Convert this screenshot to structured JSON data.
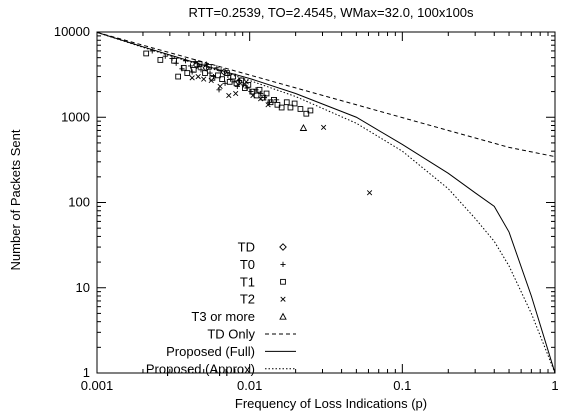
{
  "chart_data": {
    "type": "scatter",
    "title": "RTT=0.2539, TO=2.4545, WMax=32.0, 100x100s",
    "xlabel": "Frequency of Loss Indications (p)",
    "ylabel": "Number of Packets Sent",
    "xscale": "log",
    "yscale": "log",
    "xlim": [
      0.001,
      1
    ],
    "ylim": [
      1,
      10000
    ],
    "x_ticks": [
      "0.001",
      "0.01",
      "0.1",
      "1"
    ],
    "y_ticks": [
      "1",
      "10",
      "100",
      "1000",
      "10000"
    ],
    "legend_placement": "bottom-center",
    "series": [
      {
        "name": "TD",
        "kind": "points",
        "marker": "diamond",
        "points": [
          [
            0.0045,
            4100
          ],
          [
            0.0052,
            3800
          ],
          [
            0.0068,
            3400
          ],
          [
            0.0085,
            2600
          ]
        ]
      },
      {
        "name": "T0",
        "kind": "points",
        "marker": "plus",
        "points": [
          [
            0.0023,
            6000
          ],
          [
            0.0028,
            5200
          ],
          [
            0.0031,
            4900
          ],
          [
            0.0033,
            4300
          ],
          [
            0.0036,
            3700
          ],
          [
            0.0038,
            4600
          ],
          [
            0.0041,
            4000
          ],
          [
            0.0044,
            4500
          ],
          [
            0.0046,
            3900
          ],
          [
            0.0048,
            3600
          ],
          [
            0.0052,
            4200
          ],
          [
            0.0055,
            3300
          ],
          [
            0.0058,
            3000
          ],
          [
            0.0061,
            3800
          ],
          [
            0.0065,
            3500
          ],
          [
            0.0069,
            2500
          ],
          [
            0.0072,
            3100
          ],
          [
            0.0075,
            2800
          ],
          [
            0.0079,
            2600
          ],
          [
            0.0083,
            2300
          ],
          [
            0.0086,
            2700
          ],
          [
            0.0091,
            2400
          ],
          [
            0.0096,
            2200
          ],
          [
            0.0102,
            2000
          ],
          [
            0.011,
            2100
          ],
          [
            0.0118,
            1900
          ],
          [
            0.0125,
            1700
          ],
          [
            0.0135,
            1500
          ],
          [
            0.015,
            1600
          ],
          [
            0.0042,
            3400
          ],
          [
            0.0063,
            2100
          ]
        ]
      },
      {
        "name": "T1",
        "kind": "points",
        "marker": "square",
        "points": [
          [
            0.0021,
            5600
          ],
          [
            0.0026,
            4700
          ],
          [
            0.0032,
            4600
          ],
          [
            0.0037,
            3800
          ],
          [
            0.0039,
            3300
          ],
          [
            0.0043,
            3600
          ],
          [
            0.0047,
            4200
          ],
          [
            0.0051,
            3300
          ],
          [
            0.0054,
            3900
          ],
          [
            0.0057,
            2900
          ],
          [
            0.0062,
            3100
          ],
          [
            0.0066,
            2800
          ],
          [
            0.0071,
            3300
          ],
          [
            0.0074,
            2600
          ],
          [
            0.0078,
            3000
          ],
          [
            0.0082,
            2500
          ],
          [
            0.0088,
            2700
          ],
          [
            0.0093,
            2200
          ],
          [
            0.0098,
            2400
          ],
          [
            0.0104,
            2000
          ],
          [
            0.0111,
            1800
          ],
          [
            0.0116,
            2100
          ],
          [
            0.0123,
            1700
          ],
          [
            0.0129,
            1900
          ],
          [
            0.0137,
            1500
          ],
          [
            0.0144,
            1600
          ],
          [
            0.0152,
            1400
          ],
          [
            0.0162,
            1300
          ],
          [
            0.0175,
            1500
          ],
          [
            0.0185,
            1300
          ],
          [
            0.0197,
            1450
          ],
          [
            0.0215,
            1250
          ],
          [
            0.0235,
            1100
          ],
          [
            0.025,
            1200
          ],
          [
            0.0034,
            3000
          ]
        ]
      },
      {
        "name": "T2",
        "kind": "points",
        "marker": "cross",
        "points": [
          [
            0.0042,
            2900
          ],
          [
            0.0046,
            3000
          ],
          [
            0.005,
            2800
          ],
          [
            0.0056,
            2700
          ],
          [
            0.0064,
            2300
          ],
          [
            0.0073,
            1800
          ],
          [
            0.0081,
            1900
          ],
          [
            0.0095,
            2600
          ],
          [
            0.0105,
            1800
          ],
          [
            0.0118,
            1650
          ],
          [
            0.0132,
            1400
          ],
          [
            0.0305,
            760
          ],
          [
            0.061,
            130
          ]
        ]
      },
      {
        "name": "T3 or more",
        "kind": "points",
        "marker": "triangle",
        "points": [
          [
            0.0225,
            750
          ]
        ]
      },
      {
        "name": "TD Only",
        "kind": "line",
        "dash": "4,3",
        "x": [
          0.001,
          0.002,
          0.005,
          0.01,
          0.02,
          0.05,
          0.1,
          0.2,
          0.5,
          1
        ],
        "y": [
          9900,
          7000,
          4430,
          3130,
          2210,
          1400,
          990,
          700,
          443,
          345
        ]
      },
      {
        "name": "Proposed (Full)",
        "kind": "line",
        "dash": "",
        "x": [
          0.001,
          0.002,
          0.004,
          0.007,
          0.01,
          0.02,
          0.05,
          0.1,
          0.2,
          0.3,
          0.4,
          0.5,
          0.7,
          1
        ],
        "y": [
          9900,
          6700,
          4600,
          3400,
          2850,
          1900,
          1000,
          480,
          220,
          130,
          90,
          45,
          8,
          1
        ]
      },
      {
        "name": "Proposed (Approx)",
        "kind": "line",
        "dash": "1.5,2",
        "x": [
          0.001,
          0.002,
          0.004,
          0.007,
          0.01,
          0.02,
          0.05,
          0.1,
          0.2,
          0.3,
          0.4,
          0.5,
          0.7,
          1
        ],
        "y": [
          9900,
          6600,
          4500,
          3300,
          2700,
          1750,
          850,
          400,
          145,
          65,
          35,
          18,
          5,
          1
        ]
      }
    ]
  }
}
